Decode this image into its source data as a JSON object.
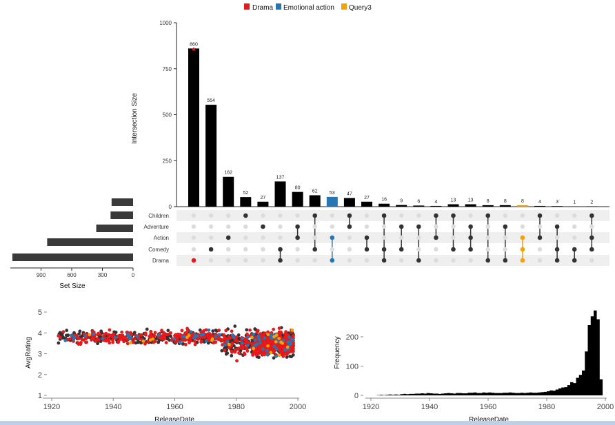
{
  "colors": {
    "bar": "#000000",
    "setbar": "#3a3a3a",
    "dot_active": "#333333",
    "dot_inactive": "#dcdcdc",
    "stripe": "#efefef",
    "drama": "#e8191b",
    "emotional_action": "#2477b4",
    "query3": "#f5a200"
  },
  "chart_data": [
    {
      "type": "bar",
      "name": "upset-intersections",
      "title": "",
      "ylabel": "Intersection Size",
      "ylim": [
        0,
        1000
      ],
      "yticks": [
        "0",
        "250",
        "500",
        "750",
        "1000"
      ],
      "legend": [
        {
          "name": "Drama",
          "color": "#e8191b"
        },
        {
          "name": "Emotional action",
          "color": "#2477b4"
        },
        {
          "name": "Query3",
          "color": "#f5a200"
        }
      ],
      "sets": [
        "Children",
        "Adventure",
        "Action",
        "Comedy",
        "Drama"
      ],
      "intersections": [
        {
          "value": 860,
          "label": "860",
          "members": [
            "Drama"
          ],
          "highlight": "drama"
        },
        {
          "value": 554,
          "label": "554",
          "members": [
            "Comedy"
          ]
        },
        {
          "value": 162,
          "label": "162",
          "members": [
            "Action"
          ]
        },
        {
          "value": 52,
          "label": "52",
          "members": [
            "Children"
          ]
        },
        {
          "value": 27,
          "label": "27",
          "members": [
            "Adventure"
          ]
        },
        {
          "value": 137,
          "label": "137",
          "members": [
            "Comedy",
            "Drama"
          ]
        },
        {
          "value": 80,
          "label": "80",
          "members": [
            "Adventure",
            "Action"
          ]
        },
        {
          "value": 62,
          "label": "62",
          "members": [
            "Children",
            "Comedy"
          ]
        },
        {
          "value": 53,
          "label": "53",
          "members": [
            "Action",
            "Drama"
          ],
          "highlight": "emotional_action"
        },
        {
          "value": 47,
          "label": "47",
          "members": [
            "Children",
            "Adventure"
          ]
        },
        {
          "value": 27,
          "label": "27",
          "members": [
            "Action",
            "Comedy"
          ]
        },
        {
          "value": 16,
          "label": "16",
          "members": [
            "Children",
            "Comedy",
            "Drama"
          ]
        },
        {
          "value": 9,
          "label": "9",
          "members": [
            "Adventure",
            "Comedy"
          ]
        },
        {
          "value": 6,
          "label": "6",
          "members": [
            "Adventure",
            "Drama"
          ]
        },
        {
          "value": 4,
          "label": "4",
          "members": [
            "Children",
            "Action"
          ]
        },
        {
          "value": 13,
          "label": "13",
          "members": [
            "Children",
            "Comedy"
          ]
        },
        {
          "value": 13,
          "label": "13",
          "members": [
            "Adventure",
            "Action",
            "Comedy"
          ]
        },
        {
          "value": 8,
          "label": "8",
          "members": [
            "Children",
            "Drama"
          ]
        },
        {
          "value": 8,
          "label": "8",
          "members": [
            "Adventure",
            "Drama"
          ]
        },
        {
          "value": 8,
          "label": "8",
          "members": [
            "Action",
            "Comedy",
            "Drama"
          ],
          "highlight": "query3"
        },
        {
          "value": 4,
          "label": "4",
          "members": [
            "Children",
            "Action"
          ]
        },
        {
          "value": 3,
          "label": "3",
          "members": [
            "Adventure",
            "Comedy",
            "Drama"
          ]
        },
        {
          "value": 1,
          "label": "1",
          "members": [
            "Comedy",
            "Drama"
          ]
        },
        {
          "value": 2,
          "label": "2",
          "members": [
            "Children",
            "Action",
            "Comedy"
          ]
        }
      ]
    },
    {
      "type": "bar",
      "name": "set-size",
      "xlabel": "Set Size",
      "xlim": [
        1200,
        0
      ],
      "xticks": [
        "900",
        "600",
        "300",
        "0"
      ],
      "categories": [
        "Children",
        "Adventure",
        "Action",
        "Comedy",
        "Drama"
      ],
      "values": [
        210,
        220,
        360,
        840,
        1180
      ]
    },
    {
      "type": "scatter",
      "name": "avgrating-vs-releasedate",
      "xlabel": "ReleaseDate",
      "ylabel": "AvgRating",
      "xlim": [
        1919,
        2002
      ],
      "ylim": [
        0.8,
        5.2
      ],
      "xticks": [
        "1920",
        "1940",
        "1960",
        "1980",
        "2000"
      ],
      "yticks": [
        "1",
        "2",
        "3",
        "4",
        "5"
      ],
      "series": [
        {
          "name": "Drama",
          "color": "#e8191b"
        },
        {
          "name": "Other",
          "color": "#3a3a3a"
        },
        {
          "name": "Emotional action",
          "color": "#2477b4"
        },
        {
          "name": "Query3",
          "color": "#f5a200"
        }
      ]
    },
    {
      "type": "bar",
      "name": "release-frequency",
      "xlabel": "ReleaseDate",
      "ylabel": "Frequency",
      "xlim": [
        1920,
        2000
      ],
      "ylim": [
        0,
        300
      ],
      "xticks": [
        "1920",
        "1940",
        "1960",
        "1980",
        "2000"
      ],
      "yticks": [
        "0",
        "100",
        "200"
      ],
      "years": [
        1922,
        1923,
        1924,
        1925,
        1926,
        1927,
        1928,
        1929,
        1930,
        1931,
        1932,
        1933,
        1934,
        1935,
        1936,
        1937,
        1938,
        1939,
        1940,
        1941,
        1942,
        1943,
        1944,
        1945,
        1946,
        1947,
        1948,
        1949,
        1950,
        1951,
        1952,
        1953,
        1954,
        1955,
        1956,
        1957,
        1958,
        1959,
        1960,
        1961,
        1962,
        1963,
        1964,
        1965,
        1966,
        1967,
        1968,
        1969,
        1970,
        1971,
        1972,
        1973,
        1974,
        1975,
        1976,
        1977,
        1978,
        1979,
        1980,
        1981,
        1982,
        1983,
        1984,
        1985,
        1986,
        1987,
        1988,
        1989,
        1990,
        1991,
        1992,
        1993,
        1994,
        1995,
        1996,
        1997,
        1998
      ],
      "values": [
        1,
        2,
        1,
        2,
        3,
        2,
        3,
        2,
        4,
        5,
        4,
        5,
        5,
        6,
        6,
        7,
        6,
        8,
        7,
        6,
        6,
        5,
        6,
        7,
        8,
        7,
        6,
        8,
        8,
        7,
        7,
        9,
        9,
        10,
        8,
        8,
        10,
        9,
        10,
        9,
        8,
        8,
        8,
        9,
        9,
        10,
        9,
        8,
        8,
        9,
        8,
        9,
        10,
        9,
        9,
        10,
        11,
        12,
        14,
        17,
        16,
        20,
        24,
        27,
        28,
        35,
        45,
        42,
        60,
        70,
        85,
        150,
        240,
        270,
        290,
        260,
        55
      ]
    }
  ]
}
